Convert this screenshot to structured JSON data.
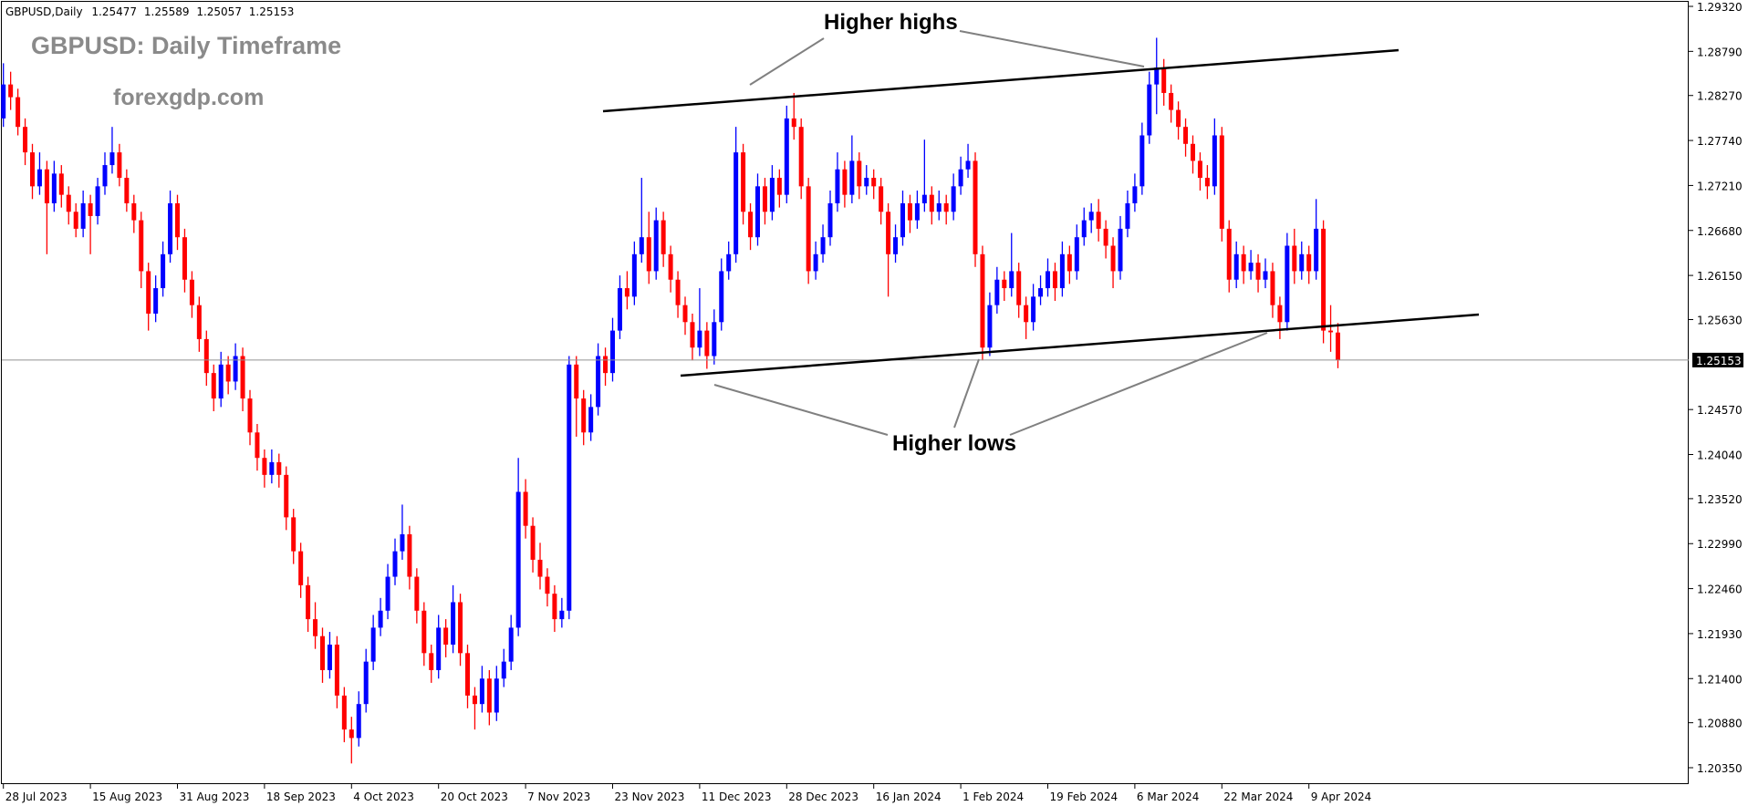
{
  "chart_data": {
    "type": "candlestick",
    "symbol": "GBPUSD,Daily",
    "title": "GBPUSD: Daily Timeframe",
    "watermark": "forexgdp.com",
    "annotations": [
      "Higher highs",
      "Higher lows"
    ],
    "up_color": "#0000ff",
    "down_color": "#ff0000",
    "ylim": [
      1.2035,
      1.2932
    ],
    "yticks": [
      {
        "value": 1.2932,
        "label": "1.29320"
      },
      {
        "value": 1.2879,
        "label": "1.28790"
      },
      {
        "value": 1.2827,
        "label": "1.28270"
      },
      {
        "value": 1.2774,
        "label": "1.27740"
      },
      {
        "value": 1.2721,
        "label": "1.27210"
      },
      {
        "value": 1.2668,
        "label": "1.26680"
      },
      {
        "value": 1.2615,
        "label": "1.26150"
      },
      {
        "value": 1.2563,
        "label": "1.25630"
      },
      {
        "value": 1.2457,
        "label": "1.24570"
      },
      {
        "value": 1.2404,
        "label": "1.24040"
      },
      {
        "value": 1.2352,
        "label": "1.23520"
      },
      {
        "value": 1.2299,
        "label": "1.22990"
      },
      {
        "value": 1.2246,
        "label": "1.22460"
      },
      {
        "value": 1.2193,
        "label": "1.21930"
      },
      {
        "value": 1.214,
        "label": "1.21400"
      },
      {
        "value": 1.2088,
        "label": "1.20880"
      },
      {
        "value": 1.2035,
        "label": "1.20350"
      }
    ],
    "categories": [
      "28 Jul 2023",
      null,
      null,
      null,
      null,
      null,
      null,
      null,
      null,
      null,
      null,
      null,
      "15 Aug 2023",
      null,
      null,
      null,
      null,
      null,
      null,
      null,
      null,
      null,
      null,
      null,
      "31 Aug 2023",
      null,
      null,
      null,
      null,
      null,
      null,
      null,
      null,
      null,
      null,
      null,
      "18 Sep 2023",
      null,
      null,
      null,
      null,
      null,
      null,
      null,
      null,
      null,
      null,
      null,
      "4 Oct 2023",
      null,
      null,
      null,
      null,
      null,
      null,
      null,
      null,
      null,
      null,
      null,
      "20 Oct 2023",
      null,
      null,
      null,
      null,
      null,
      null,
      null,
      null,
      null,
      null,
      null,
      "7 Nov 2023",
      null,
      null,
      null,
      null,
      null,
      null,
      null,
      null,
      null,
      null,
      null,
      "23 Nov 2023",
      null,
      null,
      null,
      null,
      null,
      null,
      null,
      null,
      null,
      null,
      null,
      "11 Dec 2023",
      null,
      null,
      null,
      null,
      null,
      null,
      null,
      null,
      null,
      null,
      null,
      "28 Dec 2023",
      null,
      null,
      null,
      null,
      null,
      null,
      null,
      null,
      null,
      null,
      null,
      "16 Jan 2024",
      null,
      null,
      null,
      null,
      null,
      null,
      null,
      null,
      null,
      null,
      null,
      "1 Feb 2024",
      null,
      null,
      null,
      null,
      null,
      null,
      null,
      null,
      null,
      null,
      null,
      "19 Feb 2024",
      null,
      null,
      null,
      null,
      null,
      null,
      null,
      null,
      null,
      null,
      null,
      "6 Mar 2024",
      null,
      null,
      null,
      null,
      null,
      null,
      null,
      null,
      null,
      null,
      null,
      "22 Mar 2024",
      null,
      null,
      null,
      null,
      null,
      null,
      null,
      null,
      null,
      null,
      null,
      "9 Apr 2024",
      null,
      null,
      null,
      null
    ],
    "ohlc": [
      [
        1.28,
        1.2865,
        1.279,
        1.284
      ],
      [
        1.284,
        1.2855,
        1.281,
        1.2825
      ],
      [
        1.2825,
        1.2835,
        1.278,
        1.279
      ],
      [
        1.279,
        1.28,
        1.2745,
        1.276
      ],
      [
        1.276,
        1.277,
        1.2705,
        1.272
      ],
      [
        1.272,
        1.276,
        1.271,
        1.274
      ],
      [
        1.274,
        1.275,
        1.264,
        1.27
      ],
      [
        1.27,
        1.275,
        1.269,
        1.2735
      ],
      [
        1.2735,
        1.2745,
        1.2695,
        1.271
      ],
      [
        1.271,
        1.272,
        1.2675,
        1.269
      ],
      [
        1.269,
        1.27,
        1.266,
        1.267
      ],
      [
        1.267,
        1.2715,
        1.266,
        1.27
      ],
      [
        1.27,
        1.271,
        1.264,
        1.2685
      ],
      [
        1.2685,
        1.273,
        1.2675,
        1.272
      ],
      [
        1.272,
        1.276,
        1.271,
        1.2745
      ],
      [
        1.2745,
        1.279,
        1.2735,
        1.276
      ],
      [
        1.276,
        1.277,
        1.272,
        1.273
      ],
      [
        1.273,
        1.274,
        1.269,
        1.27
      ],
      [
        1.27,
        1.271,
        1.2665,
        1.268
      ],
      [
        1.268,
        1.269,
        1.26,
        1.262
      ],
      [
        1.262,
        1.263,
        1.255,
        1.257
      ],
      [
        1.257,
        1.2615,
        1.256,
        1.26
      ],
      [
        1.26,
        1.2655,
        1.259,
        1.264
      ],
      [
        1.264,
        1.2715,
        1.263,
        1.27
      ],
      [
        1.27,
        1.271,
        1.2645,
        1.266
      ],
      [
        1.266,
        1.267,
        1.2595,
        1.261
      ],
      [
        1.261,
        1.262,
        1.2565,
        1.258
      ],
      [
        1.258,
        1.259,
        1.2525,
        1.254
      ],
      [
        1.254,
        1.255,
        1.2485,
        1.25
      ],
      [
        1.25,
        1.251,
        1.2455,
        1.247
      ],
      [
        1.247,
        1.2525,
        1.246,
        1.251
      ],
      [
        1.251,
        1.252,
        1.2475,
        1.249
      ],
      [
        1.249,
        1.2535,
        1.248,
        1.252
      ],
      [
        1.252,
        1.253,
        1.2455,
        1.247
      ],
      [
        1.247,
        1.248,
        1.2415,
        1.243
      ],
      [
        1.243,
        1.244,
        1.2385,
        1.24
      ],
      [
        1.24,
        1.241,
        1.2365,
        1.238
      ],
      [
        1.238,
        1.241,
        1.237,
        1.2395
      ],
      [
        1.2395,
        1.2405,
        1.2365,
        1.238
      ],
      [
        1.238,
        1.239,
        1.2315,
        1.233
      ],
      [
        1.233,
        1.234,
        1.2275,
        1.229
      ],
      [
        1.229,
        1.23,
        1.2235,
        1.225
      ],
      [
        1.225,
        1.226,
        1.2195,
        1.221
      ],
      [
        1.221,
        1.223,
        1.2175,
        1.219
      ],
      [
        1.219,
        1.22,
        1.2135,
        1.215
      ],
      [
        1.215,
        1.2195,
        1.214,
        1.218
      ],
      [
        1.218,
        1.219,
        1.2105,
        1.212
      ],
      [
        1.212,
        1.213,
        1.2065,
        1.208
      ],
      [
        1.208,
        1.2095,
        1.204,
        1.207
      ],
      [
        1.207,
        1.2125,
        1.206,
        1.211
      ],
      [
        1.211,
        1.2175,
        1.21,
        1.216
      ],
      [
        1.216,
        1.2215,
        1.215,
        1.22
      ],
      [
        1.22,
        1.2235,
        1.219,
        1.222
      ],
      [
        1.222,
        1.2275,
        1.221,
        1.226
      ],
      [
        1.226,
        1.2305,
        1.225,
        1.229
      ],
      [
        1.229,
        1.2345,
        1.228,
        1.231
      ],
      [
        1.231,
        1.232,
        1.2245,
        1.226
      ],
      [
        1.226,
        1.227,
        1.2205,
        1.222
      ],
      [
        1.222,
        1.223,
        1.2155,
        1.217
      ],
      [
        1.217,
        1.218,
        1.2135,
        1.215
      ],
      [
        1.215,
        1.2215,
        1.214,
        1.22
      ],
      [
        1.22,
        1.221,
        1.2165,
        1.218
      ],
      [
        1.218,
        1.225,
        1.217,
        1.223
      ],
      [
        1.223,
        1.224,
        1.2155,
        1.217
      ],
      [
        1.217,
        1.218,
        1.2105,
        1.212
      ],
      [
        1.212,
        1.213,
        1.208,
        1.211
      ],
      [
        1.211,
        1.2155,
        1.21,
        1.214
      ],
      [
        1.214,
        1.215,
        1.2085,
        1.21
      ],
      [
        1.21,
        1.2155,
        1.209,
        1.214
      ],
      [
        1.214,
        1.2175,
        1.213,
        1.216
      ],
      [
        1.216,
        1.2215,
        1.215,
        1.22
      ],
      [
        1.22,
        1.24,
        1.219,
        1.236
      ],
      [
        1.236,
        1.2375,
        1.2305,
        1.232
      ],
      [
        1.232,
        1.233,
        1.2265,
        1.228
      ],
      [
        1.228,
        1.23,
        1.2245,
        1.226
      ],
      [
        1.226,
        1.227,
        1.2225,
        1.224
      ],
      [
        1.224,
        1.225,
        1.2195,
        1.221
      ],
      [
        1.221,
        1.2235,
        1.22,
        1.222
      ],
      [
        1.222,
        1.252,
        1.221,
        1.251
      ],
      [
        1.251,
        1.252,
        1.2425,
        1.247
      ],
      [
        1.247,
        1.248,
        1.2415,
        1.243
      ],
      [
        1.243,
        1.2475,
        1.242,
        1.246
      ],
      [
        1.246,
        1.2535,
        1.245,
        1.252
      ],
      [
        1.252,
        1.253,
        1.2485,
        1.25
      ],
      [
        1.25,
        1.2565,
        1.249,
        1.255
      ],
      [
        1.255,
        1.2615,
        1.254,
        1.26
      ],
      [
        1.26,
        1.262,
        1.2575,
        1.259
      ],
      [
        1.259,
        1.2655,
        1.258,
        1.264
      ],
      [
        1.264,
        1.273,
        1.263,
        1.266
      ],
      [
        1.266,
        1.269,
        1.2605,
        1.262
      ],
      [
        1.262,
        1.2695,
        1.261,
        1.268
      ],
      [
        1.268,
        1.269,
        1.2625,
        1.264
      ],
      [
        1.264,
        1.265,
        1.2595,
        1.261
      ],
      [
        1.261,
        1.262,
        1.2565,
        1.258
      ],
      [
        1.258,
        1.259,
        1.2545,
        1.256
      ],
      [
        1.256,
        1.257,
        1.2515,
        1.253
      ],
      [
        1.253,
        1.26,
        1.252,
        1.255
      ],
      [
        1.255,
        1.256,
        1.2505,
        1.252
      ],
      [
        1.252,
        1.2575,
        1.251,
        1.256
      ],
      [
        1.256,
        1.2635,
        1.255,
        1.262
      ],
      [
        1.262,
        1.2655,
        1.261,
        1.264
      ],
      [
        1.264,
        1.279,
        1.263,
        1.276
      ],
      [
        1.276,
        1.277,
        1.2675,
        1.269
      ],
      [
        1.269,
        1.27,
        1.2645,
        1.266
      ],
      [
        1.266,
        1.2735,
        1.265,
        1.272
      ],
      [
        1.272,
        1.273,
        1.2675,
        1.269
      ],
      [
        1.269,
        1.2745,
        1.268,
        1.273
      ],
      [
        1.273,
        1.274,
        1.2695,
        1.271
      ],
      [
        1.271,
        1.2815,
        1.27,
        1.28
      ],
      [
        1.28,
        1.283,
        1.2775,
        1.279
      ],
      [
        1.279,
        1.28,
        1.2705,
        1.272
      ],
      [
        1.272,
        1.273,
        1.2605,
        1.262
      ],
      [
        1.262,
        1.2655,
        1.261,
        1.264
      ],
      [
        1.264,
        1.2675,
        1.263,
        1.266
      ],
      [
        1.266,
        1.2715,
        1.265,
        1.27
      ],
      [
        1.27,
        1.276,
        1.269,
        1.274
      ],
      [
        1.274,
        1.275,
        1.2695,
        1.271
      ],
      [
        1.271,
        1.278,
        1.27,
        1.275
      ],
      [
        1.275,
        1.276,
        1.2705,
        1.272
      ],
      [
        1.272,
        1.2745,
        1.271,
        1.273
      ],
      [
        1.273,
        1.274,
        1.2705,
        1.272
      ],
      [
        1.272,
        1.273,
        1.2675,
        1.269
      ],
      [
        1.269,
        1.27,
        1.259,
        1.264
      ],
      [
        1.264,
        1.2675,
        1.263,
        1.266
      ],
      [
        1.266,
        1.2715,
        1.265,
        1.27
      ],
      [
        1.27,
        1.271,
        1.2665,
        1.268
      ],
      [
        1.268,
        1.2715,
        1.267,
        1.27
      ],
      [
        1.27,
        1.2775,
        1.269,
        1.271
      ],
      [
        1.271,
        1.272,
        1.2675,
        1.269
      ],
      [
        1.269,
        1.2715,
        1.268,
        1.27
      ],
      [
        1.27,
        1.271,
        1.2675,
        1.269
      ],
      [
        1.269,
        1.2735,
        1.268,
        1.272
      ],
      [
        1.272,
        1.2755,
        1.271,
        1.274
      ],
      [
        1.274,
        1.277,
        1.273,
        1.275
      ],
      [
        1.275,
        1.276,
        1.2625,
        1.264
      ],
      [
        1.264,
        1.265,
        1.2515,
        1.253
      ],
      [
        1.253,
        1.2595,
        1.252,
        1.258
      ],
      [
        1.258,
        1.2625,
        1.257,
        1.261
      ],
      [
        1.261,
        1.262,
        1.2585,
        1.26
      ],
      [
        1.26,
        1.2665,
        1.259,
        1.262
      ],
      [
        1.262,
        1.263,
        1.2565,
        1.258
      ],
      [
        1.258,
        1.259,
        1.254,
        1.256
      ],
      [
        1.256,
        1.2605,
        1.255,
        1.259
      ],
      [
        1.259,
        1.2615,
        1.258,
        1.26
      ],
      [
        1.26,
        1.2635,
        1.259,
        1.262
      ],
      [
        1.262,
        1.263,
        1.2585,
        1.26
      ],
      [
        1.26,
        1.2655,
        1.259,
        1.264
      ],
      [
        1.264,
        1.265,
        1.2605,
        1.262
      ],
      [
        1.262,
        1.2675,
        1.261,
        1.266
      ],
      [
        1.266,
        1.2695,
        1.265,
        1.268
      ],
      [
        1.268,
        1.27,
        1.2665,
        1.269
      ],
      [
        1.269,
        1.2705,
        1.2655,
        1.267
      ],
      [
        1.267,
        1.268,
        1.2635,
        1.265
      ],
      [
        1.265,
        1.266,
        1.26,
        1.262
      ],
      [
        1.262,
        1.2685,
        1.261,
        1.267
      ],
      [
        1.267,
        1.2715,
        1.266,
        1.27
      ],
      [
        1.27,
        1.2735,
        1.269,
        1.272
      ],
      [
        1.272,
        1.2795,
        1.271,
        1.278
      ],
      [
        1.278,
        1.2855,
        1.277,
        1.284
      ],
      [
        1.284,
        1.2895,
        1.2805,
        1.286
      ],
      [
        1.286,
        1.287,
        1.2815,
        1.283
      ],
      [
        1.283,
        1.284,
        1.2795,
        1.281
      ],
      [
        1.281,
        1.282,
        1.2775,
        1.279
      ],
      [
        1.279,
        1.28,
        1.2755,
        1.277
      ],
      [
        1.277,
        1.278,
        1.2735,
        1.275
      ],
      [
        1.275,
        1.276,
        1.2715,
        1.273
      ],
      [
        1.273,
        1.2745,
        1.2705,
        1.272
      ],
      [
        1.272,
        1.28,
        1.271,
        1.278
      ],
      [
        1.278,
        1.279,
        1.2655,
        1.267
      ],
      [
        1.267,
        1.268,
        1.2595,
        1.261
      ],
      [
        1.261,
        1.2655,
        1.26,
        1.264
      ],
      [
        1.264,
        1.265,
        1.2605,
        1.262
      ],
      [
        1.262,
        1.2645,
        1.261,
        1.263
      ],
      [
        1.263,
        1.264,
        1.2595,
        1.261
      ],
      [
        1.261,
        1.2635,
        1.26,
        1.262
      ],
      [
        1.262,
        1.263,
        1.2565,
        1.258
      ],
      [
        1.258,
        1.259,
        1.254,
        1.256
      ],
      [
        1.256,
        1.2665,
        1.255,
        1.265
      ],
      [
        1.265,
        1.267,
        1.2605,
        1.262
      ],
      [
        1.262,
        1.2655,
        1.261,
        1.264
      ],
      [
        1.264,
        1.265,
        1.2605,
        1.262
      ],
      [
        1.262,
        1.2705,
        1.261,
        1.267
      ],
      [
        1.267,
        1.268,
        1.2535,
        1.255
      ],
      [
        1.255,
        1.258,
        1.2525,
        1.2548
      ],
      [
        1.25477,
        1.25589,
        1.25057,
        1.25153
      ]
    ]
  }
}
